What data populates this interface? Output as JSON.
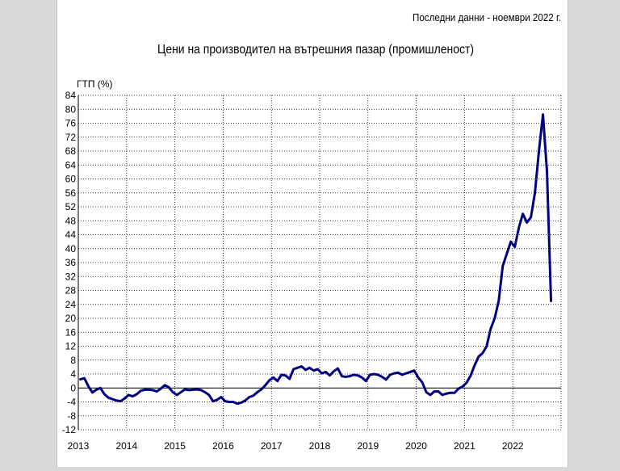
{
  "note": "Последни данни - ноември 2022 г.",
  "colors": {
    "line": "#000080",
    "grid": "#000000",
    "background": "#ffffff",
    "page_background": "#d9d9d9"
  },
  "chart_data": {
    "type": "line",
    "title": "Цени на производител на вътрешния пазар (промишленост)",
    "ylabel": "ГТП (%)",
    "xlabel": "",
    "ylim": [
      -12,
      84
    ],
    "ytick_step": 4,
    "x_tick_labels": [
      "2013",
      "2014",
      "2015",
      "2016",
      "2017",
      "2018",
      "2019",
      "2020",
      "2021",
      "2022"
    ],
    "grid": true,
    "legend": "none",
    "series": [
      {
        "x_start": "2013-01",
        "frequency": "monthly",
        "values": [
          2.5,
          2.8,
          0.5,
          -1.3,
          -0.5,
          0.0,
          -1.8,
          -2.8,
          -3.2,
          -3.6,
          -3.8,
          -3.0,
          -2.0,
          -2.4,
          -1.8,
          -0.8,
          -0.5,
          -0.5,
          -0.6,
          -1.0,
          -0.2,
          0.8,
          0.2,
          -1.2,
          -2.0,
          -1.2,
          -0.4,
          -0.6,
          -0.5,
          -0.4,
          -0.6,
          -1.2,
          -2.0,
          -3.8,
          -3.4,
          -2.6,
          -3.8,
          -4.0,
          -4.0,
          -4.5,
          -4.2,
          -3.6,
          -2.6,
          -2.2,
          -1.2,
          -0.4,
          0.8,
          2.2,
          3.0,
          2.0,
          3.8,
          3.6,
          2.6,
          5.4,
          5.8,
          6.2,
          5.2,
          5.8,
          5.0,
          5.4,
          4.2,
          4.6,
          3.6,
          4.8,
          5.6,
          3.4,
          3.2,
          3.4,
          3.8,
          3.6,
          3.0,
          2.0,
          3.8,
          4.0,
          3.8,
          3.2,
          2.4,
          3.8,
          4.2,
          4.4,
          3.8,
          4.2,
          4.6,
          5.0,
          3.0,
          1.6,
          -1.2,
          -2.0,
          -1.0,
          -1.0,
          -2.0,
          -1.6,
          -1.4,
          -1.4,
          -0.2,
          0.4,
          1.5,
          3.5,
          6.5,
          9.0,
          10.0,
          12.0,
          17.0,
          20.0,
          25.0,
          35.0,
          38.5,
          42.0,
          40.5,
          46.0,
          50.0,
          47.5,
          49.0,
          56.0,
          68.0,
          78.5,
          62.0,
          25.0
        ]
      }
    ]
  }
}
